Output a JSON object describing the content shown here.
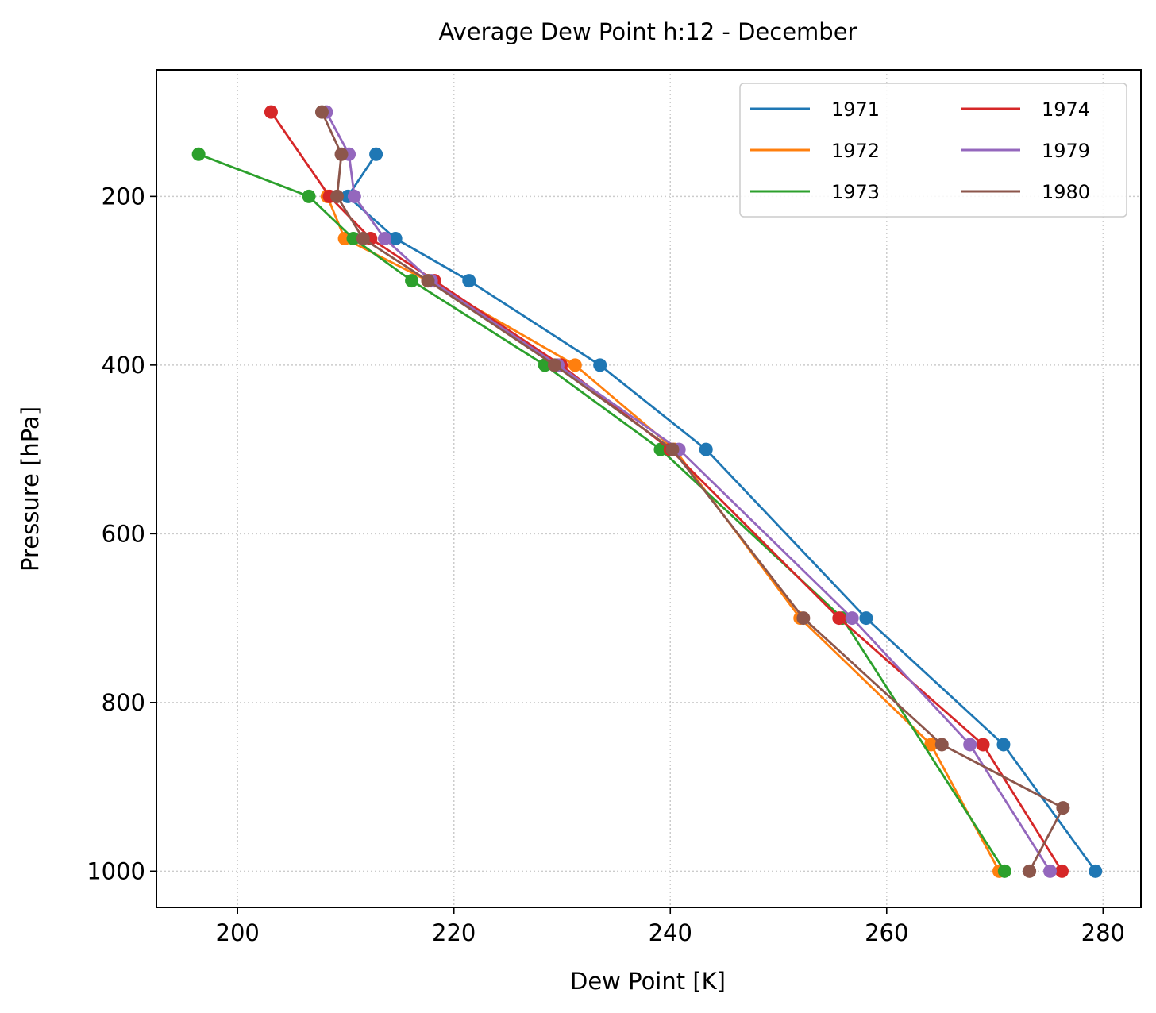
{
  "chart_data": {
    "type": "line",
    "title": "Average Dew Point h:12 - December",
    "xlabel": "Dew Point [K]",
    "ylabel": "Pressure [hPa]",
    "xlim": [
      192.5,
      283.5
    ],
    "ylim": [
      1043,
      50
    ],
    "y_inverted": true,
    "xticks": [
      200,
      220,
      240,
      260,
      280
    ],
    "yticks": [
      200,
      400,
      600,
      800,
      1000
    ],
    "grid": true,
    "legend_position": "top-right",
    "legend_columns": 2,
    "series": [
      {
        "name": "1971",
        "color": "#1f77b4",
        "points": [
          [
            212.8,
            150
          ],
          [
            210.2,
            200
          ],
          [
            214.6,
            250
          ],
          [
            221.4,
            300
          ],
          [
            233.5,
            400
          ],
          [
            243.3,
            500
          ],
          [
            258.1,
            700
          ],
          [
            270.8,
            850
          ],
          [
            279.3,
            1000
          ]
        ]
      },
      {
        "name": "1972",
        "color": "#ff7f0e",
        "points": [
          [
            208.3,
            200
          ],
          [
            209.9,
            250
          ],
          [
            217.6,
            300
          ],
          [
            231.2,
            400
          ],
          [
            240.4,
            500
          ],
          [
            252.0,
            700
          ],
          [
            264.1,
            850
          ],
          [
            270.4,
            1000
          ]
        ]
      },
      {
        "name": "1973",
        "color": "#2ca02c",
        "points": [
          [
            196.4,
            150
          ],
          [
            206.6,
            200
          ],
          [
            210.7,
            250
          ],
          [
            216.1,
            300
          ],
          [
            228.4,
            400
          ],
          [
            239.1,
            500
          ],
          [
            255.9,
            700
          ],
          [
            270.9,
            1000
          ]
        ]
      },
      {
        "name": "1974",
        "color": "#d62728",
        "points": [
          [
            203.1,
            100
          ],
          [
            208.5,
            200
          ],
          [
            212.3,
            250
          ],
          [
            218.2,
            300
          ],
          [
            229.9,
            400
          ],
          [
            240.0,
            500
          ],
          [
            255.6,
            700
          ],
          [
            268.9,
            850
          ],
          [
            276.2,
            1000
          ]
        ]
      },
      {
        "name": "1979",
        "color": "#9467bd",
        "points": [
          [
            208.2,
            100
          ],
          [
            210.3,
            150
          ],
          [
            210.8,
            200
          ],
          [
            213.6,
            250
          ],
          [
            217.9,
            300
          ],
          [
            229.6,
            400
          ],
          [
            240.8,
            500
          ],
          [
            256.8,
            700
          ],
          [
            267.7,
            850
          ],
          [
            275.1,
            1000
          ]
        ]
      },
      {
        "name": "1980",
        "color": "#8c564b",
        "points": [
          [
            207.8,
            100
          ],
          [
            209.6,
            150
          ],
          [
            209.2,
            200
          ],
          [
            211.6,
            250
          ],
          [
            217.6,
            300
          ],
          [
            229.3,
            400
          ],
          [
            240.2,
            500
          ],
          [
            252.3,
            700
          ],
          [
            265.1,
            850
          ],
          [
            276.3,
            925
          ],
          [
            273.2,
            1000
          ]
        ]
      }
    ]
  }
}
